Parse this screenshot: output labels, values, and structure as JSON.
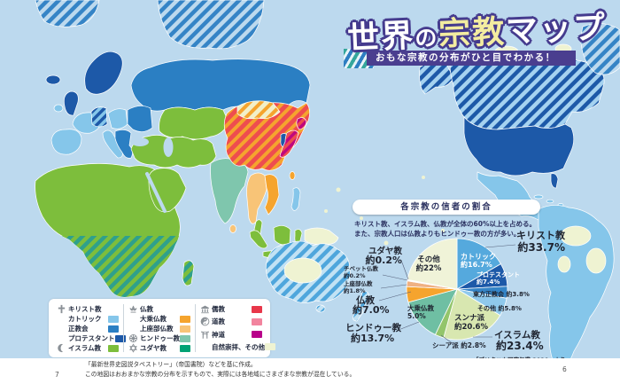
{
  "page": {
    "title_part1": "世界",
    "title_part2": "の",
    "title_part3": "宗教",
    "title_part4": "マップ",
    "title_full": "世界の宗教マップ",
    "subtitle": "おもな宗教の分布がひと目でわかる！",
    "footnote_line1": "「最新世界史図説タペストリー」（帝国書院）などを基に作成。",
    "footnote_line2": "この地図はおおまかな宗教の分布を示すもので、実際には各地域にさまざまな宗教が混在している。",
    "page_number_left": "7",
    "page_number_right": "6"
  },
  "map": {
    "ocean": "#BCD9EE",
    "colors": {
      "catholic": "#85C6EA",
      "catholic_light": "#A5D2F0",
      "orthodox": "#2B7FC3",
      "protestant": "#1D59A8",
      "islam": "#7DBE3C",
      "mahayana": "#F5A42E",
      "theravada": "#F8C477",
      "hindu": "#7FC6AD",
      "judaism": "#00A275",
      "confucian": "#EE4D4F",
      "taoism": "#F2849E",
      "shinto": "#C0087E",
      "nature": "#EFF3D2",
      "africa_stripe": "#2FA08C",
      "australia_base": "#C2E2F4",
      "australia_stripe": "#4FA6DC",
      "arctic_stripe": "#3584C6",
      "mongolia_base": "#F2EFC8"
    }
  },
  "legend": {
    "columns": [
      {
        "rows": [
          {
            "icon": "cross-icon",
            "label": "キリスト教"
          },
          {
            "label": "カトリック",
            "chip": "#85C6EA",
            "indent": true
          },
          {
            "label": "正教会",
            "chip": "#2B7FC3",
            "indent": true
          },
          {
            "label": "プロテスタント",
            "chip": "#1D59A8",
            "indent": true
          },
          {
            "icon": "crescent-icon",
            "label": "イスラム教",
            "chip": "#7DBE3C"
          }
        ]
      },
      {
        "rows": [
          {
            "icon": "lotus-icon",
            "label": "仏教"
          },
          {
            "label": "大乗仏教",
            "chip": "#F5A42E",
            "indent": true
          },
          {
            "label": "上座部仏教",
            "chip": "#F8C477",
            "indent": true
          },
          {
            "icon": "wheel-icon",
            "label": "ヒンドゥー教",
            "chip": "#7FC6AD"
          },
          {
            "icon": "star-david-icon",
            "label": "ユダヤ教",
            "chip": "#00A275"
          }
        ]
      },
      {
        "rows": [
          {
            "icon": "temple-icon",
            "label": "儒教",
            "chip": "#E8374A"
          },
          {
            "icon": "yinyang-icon",
            "label": "道教",
            "chip": "#F2849E"
          },
          {
            "icon": "torii-icon",
            "label": "神道",
            "chip": "#B8008A"
          },
          {
            "label": "自然崇拝、その他",
            "chip": "#EFF3D2"
          }
        ]
      }
    ]
  },
  "pie_panel": {
    "header": "各宗教の信者の割合",
    "desc1": "キリスト教、イスラム教、仏教が全体の60%以上を占める。",
    "desc2": "また、宗教人口は仏教よりもヒンドゥー教の方が多い。",
    "labels": {
      "christ_n": "キリスト教",
      "christ_v": "約33.7%",
      "catholic": "カトリック\n約16.7%",
      "protestant": "プロテスタント\n約7.4%",
      "orthodox": "東方正教会 約3.8%",
      "christ_others": "その他 約5.8%",
      "sunni": "スンナ派\n約20.6%",
      "shia": "シーア派 約2.8%",
      "islam_n": "イスラム教",
      "islam_v": "約23.4%",
      "hindu_n": "ヒンドゥー教",
      "hindu_v": "約13.7%",
      "budd_n": "仏教",
      "budd_v": "約7.0%",
      "mahayana": "大乗仏教\n5.0%",
      "theravada": "上座部仏教\n約1.8%",
      "tibetan": "チベット仏教\n約0.2%",
      "judaism_n": "ユダヤ教",
      "judaism_v": "約0.2%",
      "others_in": "その他\n約22%",
      "source": "「ブリタニカ国際年鑑 2020」より"
    }
  },
  "chart_data": {
    "type": "pie",
    "title": "各宗教の信者の割合",
    "note": [
      "キリスト教、イスラム教、仏教が全体の60%以上を占める。",
      "また、宗教人口は仏教よりもヒンドゥー教の方が多い。"
    ],
    "source": "「ブリタニカ国際年鑑 2020」より",
    "unit": "%",
    "start_angle": "top",
    "direction": "clockwise",
    "series": [
      {
        "name": "カトリック",
        "group": "キリスト教",
        "value": 16.7,
        "color": "#55A9DD"
      },
      {
        "name": "プロテスタント",
        "group": "キリスト教",
        "value": 7.4,
        "color": "#1D59A8"
      },
      {
        "name": "東方正教会",
        "group": "キリスト教",
        "value": 3.8,
        "color": "#3584C6"
      },
      {
        "name": "その他（キリスト教）",
        "group": "キリスト教",
        "value": 5.8,
        "color": "#8FC9EC"
      },
      {
        "name": "スンナ派",
        "group": "イスラム教",
        "value": 20.6,
        "color": "#D8E7B0"
      },
      {
        "name": "シーア派",
        "group": "イスラム教",
        "value": 2.8,
        "color": "#93C56B"
      },
      {
        "name": "ヒンドゥー教",
        "group": "ヒンドゥー教",
        "value": 13.7,
        "color": "#6FBFA3"
      },
      {
        "name": "大乗仏教",
        "group": "仏教",
        "value": 5.0,
        "color": "#F5A42E"
      },
      {
        "name": "上座部仏教",
        "group": "仏教",
        "value": 1.8,
        "color": "#EFB183"
      },
      {
        "name": "チベット仏教",
        "group": "仏教",
        "value": 0.2,
        "color": "#2F8C72"
      },
      {
        "name": "ユダヤ教",
        "group": "ユダヤ教",
        "value": 0.2,
        "color": "#E8425A"
      },
      {
        "name": "その他",
        "group": "その他",
        "value": 22.0,
        "color": "#F0F3D8"
      }
    ],
    "group_totals": [
      {
        "name": "キリスト教",
        "value": 33.7
      },
      {
        "name": "イスラム教",
        "value": 23.4
      },
      {
        "name": "ヒンドゥー教",
        "value": 13.7
      },
      {
        "name": "仏教",
        "value": 7.0
      },
      {
        "name": "ユダヤ教",
        "value": 0.2
      },
      {
        "name": "その他",
        "value": 22.0
      }
    ]
  }
}
